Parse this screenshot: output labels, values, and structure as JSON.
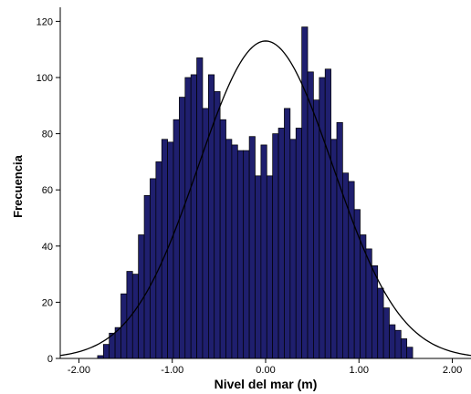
{
  "chart_data": {
    "type": "bar",
    "title": "",
    "xlabel": "Nivel del mar (m)",
    "ylabel": "Frecuencia",
    "xlim": [
      -2.2,
      2.2
    ],
    "ylim": [
      0,
      125
    ],
    "x_ticks": [
      -2.0,
      -1.0,
      0.0,
      1.0,
      2.0
    ],
    "x_tick_labels": [
      "-2.00",
      "-1.00",
      "0.00",
      "1.00",
      "2.00"
    ],
    "y_ticks": [
      0,
      20,
      40,
      60,
      80,
      100,
      120
    ],
    "y_tick_labels": [
      "0",
      "20",
      "40",
      "60",
      "80",
      "100",
      "120"
    ],
    "bin_start": -1.8,
    "bin_width": 0.0625,
    "values": [
      1,
      5,
      9,
      11,
      23,
      31,
      30,
      44,
      58,
      64,
      70,
      78,
      77,
      85,
      93,
      100,
      101,
      107,
      89,
      101,
      95,
      85,
      78,
      76,
      74,
      74,
      79,
      65,
      76,
      65,
      80,
      82,
      89,
      78,
      82,
      118,
      102,
      92,
      100,
      103,
      78,
      84,
      66,
      63,
      53,
      44,
      39,
      33,
      25,
      18,
      12,
      10,
      7,
      4
    ],
    "normal_curve": {
      "mean": 0.0,
      "peak": 113,
      "sd": 0.72
    },
    "grid": false,
    "colors": {
      "bar_fill": "#1f1f6e",
      "bar_stroke": "#000000",
      "curve": "#000000",
      "axis": "#000000"
    }
  }
}
